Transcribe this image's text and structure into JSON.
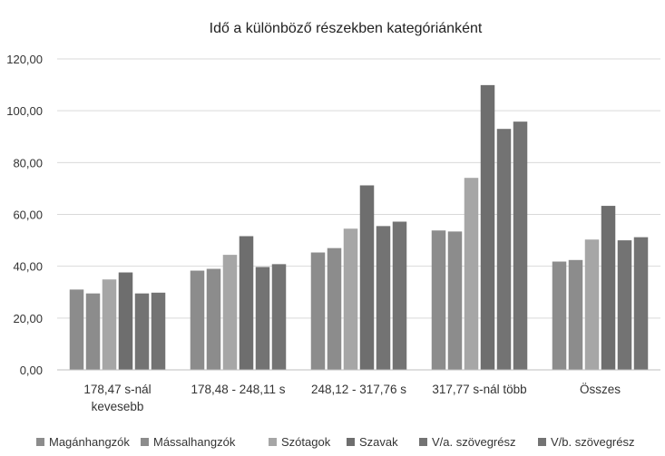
{
  "chart_data": {
    "type": "bar",
    "title": "Idő a különböző részekben kategóriánként",
    "xlabel": "",
    "ylabel": "",
    "ylim": [
      0,
      120
    ],
    "yticks": [
      "0,00",
      "20,00",
      "40,00",
      "60,00",
      "80,00",
      "100,00",
      "120,00"
    ],
    "grid": true,
    "legend_position": "bottom",
    "categories": [
      [
        "178,47 s-nál",
        "kevesebb"
      ],
      [
        "178,48 - 248,11 s"
      ],
      [
        "248,12 - 317,76 s"
      ],
      [
        "317,77 s-nál több"
      ],
      [
        "Összes"
      ]
    ],
    "series": [
      {
        "name": "Magánhangzók",
        "color": "#8c8c8c",
        "values": [
          31.0,
          38.3,
          45.3,
          53.8,
          41.8
        ]
      },
      {
        "name": "Mássalhangzók",
        "color": "#8c8c8c",
        "values": [
          29.5,
          39.0,
          47.0,
          53.4,
          42.4
        ]
      },
      {
        "name": "Szótagok",
        "color": "#a6a6a6",
        "values": [
          34.9,
          44.4,
          54.5,
          74.1,
          50.3
        ]
      },
      {
        "name": "Szavak",
        "color": "#6e6e6e",
        "values": [
          37.6,
          51.6,
          71.2,
          109.9,
          63.3
        ]
      },
      {
        "name": "V/a. szövegrész",
        "color": "#737373",
        "values": [
          29.5,
          39.7,
          55.5,
          93.0,
          50.0
        ]
      },
      {
        "name": "V/b. szövegrész",
        "color": "#737373",
        "values": [
          29.8,
          40.8,
          57.2,
          95.8,
          51.2
        ]
      }
    ]
  }
}
